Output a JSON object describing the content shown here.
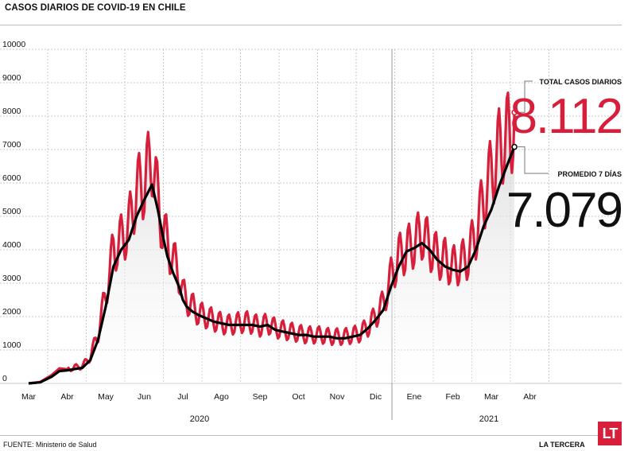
{
  "title": "CASOS DIARIOS DE COVID-19 EN CHILE",
  "source": "FUENTE: Ministerio de Salud",
  "brand": "LA TERCERA",
  "logo_text": "LT",
  "colors": {
    "daily": "#d71f3c",
    "avg": "#000000",
    "area_top": "#cfcfcf",
    "grid": "#c8c8c8"
  },
  "annotations": {
    "total_label": "TOTAL CASOS DIARIOS",
    "total_value": "8.112",
    "avg_label": "PROMEDIO 7 DÍAS",
    "avg_value": "7.079"
  },
  "chart_data": {
    "type": "line",
    "title": "CASOS DIARIOS DE COVID-19 EN CHILE",
    "xlabel": "",
    "ylabel": "",
    "ylim": [
      0,
      10000
    ],
    "yticks": [
      "0",
      "1000",
      "2000",
      "3000",
      "4000",
      "5000",
      "6000",
      "7000",
      "8000",
      "9000",
      "10000"
    ],
    "xticks": [
      "Mar",
      "Abr",
      "May",
      "Jun",
      "Jul",
      "Ago",
      "Sep",
      "Oct",
      "Nov",
      "Dic",
      "Ene",
      "Feb",
      "Mar",
      "Abr"
    ],
    "year_labels": [
      "2020",
      "2021"
    ],
    "grid": true,
    "x_unit": "months since Mar 2020 start",
    "series": [
      {
        "name": "TOTAL CASOS DIARIOS",
        "x": [
          0,
          0.3,
          0.6,
          0.8,
          1.0,
          1.2,
          1.4,
          1.6,
          1.8,
          2.0,
          2.2,
          2.4,
          2.6,
          2.8,
          3.0,
          3.2,
          3.35,
          3.5,
          3.6,
          3.75,
          3.9,
          4.0,
          4.1,
          4.25,
          4.4,
          4.6,
          4.8,
          5.0,
          5.2,
          5.4,
          5.6,
          5.8,
          6.0,
          6.2,
          6.4,
          6.6,
          6.8,
          7.0,
          7.2,
          7.4,
          7.6,
          7.8,
          8.0,
          8.2,
          8.4,
          8.6,
          8.8,
          9.0,
          9.2,
          9.4,
          9.6,
          9.8,
          10.0,
          10.2,
          10.4,
          10.6,
          10.8,
          11.0,
          11.2,
          11.4,
          11.6,
          11.8,
          12.0,
          12.2,
          12.4,
          12.5,
          12.6
        ],
        "values": [
          0,
          40,
          250,
          450,
          420,
          480,
          520,
          800,
          1500,
          2700,
          4000,
          4300,
          4700,
          5800,
          6000,
          6800,
          5500,
          4500,
          4200,
          3700,
          3300,
          2700,
          2500,
          2300,
          2100,
          2000,
          1900,
          1800,
          1750,
          1800,
          1850,
          1800,
          1700,
          1800,
          1650,
          1600,
          1550,
          1500,
          1450,
          1450,
          1450,
          1400,
          1400,
          1400,
          1450,
          1500,
          1700,
          2000,
          2400,
          3200,
          3800,
          4000,
          4200,
          4500,
          4100,
          3800,
          3700,
          3500,
          3600,
          3800,
          4500,
          5500,
          6300,
          7000,
          7500,
          7300,
          8112
        ]
      },
      {
        "name": "PROMEDIO 7 DÍAS",
        "x": [
          0,
          0.3,
          0.6,
          0.8,
          1.0,
          1.2,
          1.4,
          1.6,
          1.8,
          2.0,
          2.2,
          2.4,
          2.6,
          2.8,
          3.0,
          3.2,
          3.35,
          3.5,
          3.6,
          3.75,
          3.9,
          4.0,
          4.1,
          4.25,
          4.4,
          4.6,
          4.8,
          5.0,
          5.2,
          5.4,
          5.6,
          5.8,
          6.0,
          6.2,
          6.4,
          6.6,
          6.8,
          7.0,
          7.2,
          7.4,
          7.6,
          7.8,
          8.0,
          8.2,
          8.4,
          8.6,
          8.8,
          9.0,
          9.2,
          9.4,
          9.6,
          9.8,
          10.0,
          10.2,
          10.4,
          10.6,
          10.8,
          11.0,
          11.2,
          11.4,
          11.6,
          11.8,
          12.0,
          12.2,
          12.4,
          12.5,
          12.6
        ],
        "values": [
          0,
          30,
          200,
          370,
          390,
          430,
          470,
          700,
          1300,
          2300,
          3500,
          4000,
          4300,
          5000,
          5500,
          5950,
          5200,
          4300,
          3800,
          3300,
          2900,
          2500,
          2300,
          2150,
          2050,
          1950,
          1850,
          1800,
          1750,
          1750,
          1750,
          1750,
          1700,
          1750,
          1600,
          1550,
          1500,
          1450,
          1450,
          1400,
          1400,
          1400,
          1350,
          1350,
          1400,
          1450,
          1650,
          1900,
          2200,
          2900,
          3500,
          3950,
          4050,
          4200,
          4000,
          3700,
          3500,
          3400,
          3350,
          3500,
          4000,
          4700,
          5200,
          5900,
          6500,
          6800,
          7079
        ]
      }
    ]
  }
}
